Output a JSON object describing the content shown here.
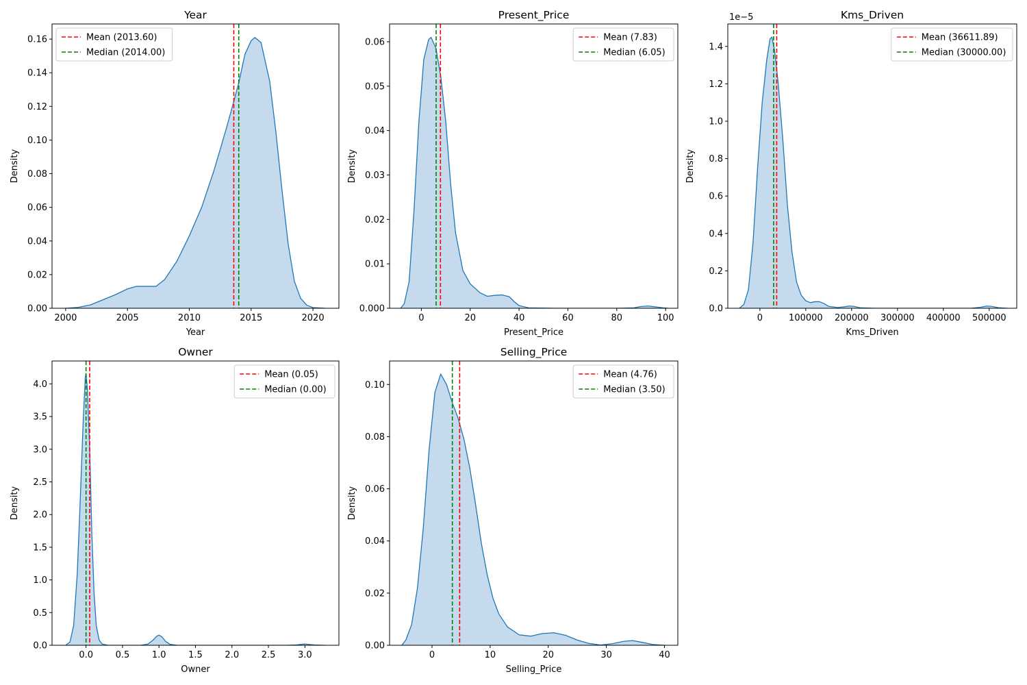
{
  "colors": {
    "fill": "#c5dbed",
    "line": "#1f77b4",
    "mean": "#ff0000",
    "median": "#008000",
    "axis": "#000000"
  },
  "chart_data": [
    {
      "type": "area",
      "title": "Year",
      "xlabel": "Year",
      "ylabel": "Density",
      "xlim": [
        1998.9,
        2022.1
      ],
      "ylim": [
        0,
        0.169
      ],
      "xticks": [
        2000,
        2005,
        2010,
        2015,
        2020
      ],
      "xtick_labels": [
        "2000",
        "2005",
        "2010",
        "2015",
        "2020"
      ],
      "yticks": [
        0,
        0.02,
        0.04,
        0.06,
        0.08,
        0.1,
        0.12,
        0.14,
        0.16
      ],
      "ytick_labels": [
        "0.00",
        "0.02",
        "0.04",
        "0.06",
        "0.08",
        "0.10",
        "0.12",
        "0.14",
        "0.16"
      ],
      "y_offset_text": "",
      "legend_position": "upper left",
      "mean": 2013.6,
      "mean_label": "Mean (2013.60)",
      "median": 2014.0,
      "median_label": "Median (2014.00)",
      "curve": [
        [
          2000,
          0
        ],
        [
          2001,
          0.0005
        ],
        [
          2002,
          0.002
        ],
        [
          2003,
          0.005
        ],
        [
          2004,
          0.008
        ],
        [
          2005,
          0.0115
        ],
        [
          2005.7,
          0.013
        ],
        [
          2006.5,
          0.013
        ],
        [
          2007.3,
          0.013
        ],
        [
          2008,
          0.017
        ],
        [
          2009,
          0.028
        ],
        [
          2010,
          0.043
        ],
        [
          2011,
          0.06
        ],
        [
          2012,
          0.082
        ],
        [
          2013,
          0.107
        ],
        [
          2013.6,
          0.123
        ],
        [
          2014,
          0.134
        ],
        [
          2014.5,
          0.151
        ],
        [
          2015,
          0.159
        ],
        [
          2015.3,
          0.161
        ],
        [
          2015.8,
          0.158
        ],
        [
          2016.5,
          0.135
        ],
        [
          2017,
          0.105
        ],
        [
          2017.5,
          0.07
        ],
        [
          2018,
          0.038
        ],
        [
          2018.5,
          0.016
        ],
        [
          2019,
          0.006
        ],
        [
          2019.5,
          0.0018
        ],
        [
          2020,
          0.0004
        ],
        [
          2021,
          0
        ]
      ]
    },
    {
      "type": "area",
      "title": "Present_Price",
      "xlabel": "Present_Price",
      "ylabel": "Density",
      "xlim": [
        -13,
        105
      ],
      "ylim": [
        0,
        0.064
      ],
      "xticks": [
        0,
        20,
        40,
        60,
        80,
        100
      ],
      "xtick_labels": [
        "0",
        "20",
        "40",
        "60",
        "80",
        "100"
      ],
      "yticks": [
        0,
        0.01,
        0.02,
        0.03,
        0.04,
        0.05,
        0.06
      ],
      "ytick_labels": [
        "0.000",
        "0.01",
        "0.02",
        "0.03",
        "0.04",
        "0.05",
        "0.06"
      ],
      "y_offset_text": "",
      "legend_position": "upper right",
      "mean": 7.83,
      "mean_label": "Mean (7.83)",
      "median": 6.05,
      "median_label": "Median (6.05)",
      "curve": [
        [
          -8.5,
          0
        ],
        [
          -7,
          0.001
        ],
        [
          -5,
          0.006
        ],
        [
          -3,
          0.022
        ],
        [
          -1,
          0.042
        ],
        [
          1,
          0.056
        ],
        [
          3,
          0.0605
        ],
        [
          4,
          0.061
        ],
        [
          6,
          0.0585
        ],
        [
          8,
          0.052
        ],
        [
          10,
          0.042
        ],
        [
          12,
          0.028
        ],
        [
          14,
          0.017
        ],
        [
          17,
          0.0085
        ],
        [
          20,
          0.0055
        ],
        [
          24,
          0.0035
        ],
        [
          27,
          0.0027
        ],
        [
          30,
          0.0029
        ],
        [
          33,
          0.003
        ],
        [
          36,
          0.0026
        ],
        [
          38,
          0.0015
        ],
        [
          40,
          0.0006
        ],
        [
          44,
          0.0001
        ],
        [
          55,
          0
        ],
        [
          80,
          0
        ],
        [
          87,
          0.0001
        ],
        [
          90,
          0.0004
        ],
        [
          93,
          0.0005
        ],
        [
          96,
          0.0003
        ],
        [
          99,
          0.0001
        ],
        [
          101,
          0
        ]
      ]
    },
    {
      "type": "area",
      "title": "Kms_Driven",
      "xlabel": "Kms_Driven",
      "ylabel": "Density",
      "xlim": [
        -70000,
        560000
      ],
      "ylim": [
        0,
        1.52e-05
      ],
      "xticks": [
        0,
        100000,
        200000,
        300000,
        400000,
        500000
      ],
      "xtick_labels": [
        "0",
        "100000",
        "200000",
        "300000",
        "400000",
        "500000"
      ],
      "yticks": [
        0,
        2e-06,
        4e-06,
        6e-06,
        8e-06,
        1e-05,
        1.2e-05,
        1.4e-05
      ],
      "ytick_labels": [
        "0.0",
        "0.2",
        "0.4",
        "0.6",
        "0.8",
        "1.0",
        "1.2",
        "1.4"
      ],
      "y_offset_text": "1e−5",
      "legend_position": "upper right",
      "mean": 36611.89,
      "mean_label": "Mean (36611.89)",
      "median": 30000.0,
      "median_label": "Median (30000.00)",
      "curve": [
        [
          -45000,
          0
        ],
        [
          -35000,
          2e-07
        ],
        [
          -25000,
          1e-06
        ],
        [
          -15000,
          3.5e-06
        ],
        [
          -5000,
          7.5e-06
        ],
        [
          5000,
          1.1e-05
        ],
        [
          15000,
          1.33e-05
        ],
        [
          22000,
          1.44e-05
        ],
        [
          26000,
          1.45e-05
        ],
        [
          32000,
          1.38e-05
        ],
        [
          40000,
          1.2e-05
        ],
        [
          50000,
          9e-06
        ],
        [
          60000,
          5.5e-06
        ],
        [
          70000,
          3e-06
        ],
        [
          80000,
          1.4e-06
        ],
        [
          90000,
          7e-07
        ],
        [
          100000,
          4e-07
        ],
        [
          110000,
          3e-07
        ],
        [
          120000,
          3.5e-07
        ],
        [
          130000,
          3.5e-07
        ],
        [
          140000,
          2.5e-07
        ],
        [
          150000,
          1e-07
        ],
        [
          170000,
          4e-08
        ],
        [
          185000,
          8e-08
        ],
        [
          195000,
          1.2e-07
        ],
        [
          205000,
          1e-07
        ],
        [
          220000,
          2e-08
        ],
        [
          250000,
          0
        ],
        [
          460000,
          0
        ],
        [
          480000,
          5e-08
        ],
        [
          495000,
          1.2e-07
        ],
        [
          505000,
          1e-07
        ],
        [
          520000,
          3e-08
        ],
        [
          540000,
          0
        ]
      ]
    },
    {
      "type": "area",
      "title": "Owner",
      "xlabel": "Owner",
      "ylabel": "Density",
      "xlim": [
        -0.466,
        3.466
      ],
      "ylim": [
        0,
        4.35
      ],
      "xticks": [
        0,
        0.5,
        1,
        1.5,
        2,
        2.5,
        3
      ],
      "xtick_labels": [
        "0.0",
        "0.5",
        "1.0",
        "1.5",
        "2.0",
        "2.5",
        "3.0"
      ],
      "yticks": [
        0,
        0.5,
        1,
        1.5,
        2,
        2.5,
        3,
        3.5,
        4
      ],
      "ytick_labels": [
        "0.0",
        "0.5",
        "1.0",
        "1.5",
        "2.0",
        "2.5",
        "3.0",
        "3.5",
        "4.0"
      ],
      "y_offset_text": "",
      "legend_position": "upper right",
      "mean": 0.05,
      "mean_label": "Mean (0.05)",
      "median": 0.0,
      "median_label": "Median (0.00)",
      "curve": [
        [
          -0.28,
          0
        ],
        [
          -0.22,
          0.05
        ],
        [
          -0.17,
          0.3
        ],
        [
          -0.12,
          1.1
        ],
        [
          -0.08,
          2.2
        ],
        [
          -0.04,
          3.4
        ],
        [
          -0.01,
          4.1
        ],
        [
          0.0,
          4.16
        ],
        [
          0.02,
          3.9
        ],
        [
          0.05,
          3.0
        ],
        [
          0.08,
          1.7
        ],
        [
          0.11,
          0.8
        ],
        [
          0.14,
          0.3
        ],
        [
          0.18,
          0.08
        ],
        [
          0.22,
          0.02
        ],
        [
          0.3,
          0
        ],
        [
          0.75,
          0
        ],
        [
          0.85,
          0.02
        ],
        [
          0.92,
          0.08
        ],
        [
          0.97,
          0.14
        ],
        [
          1.0,
          0.155
        ],
        [
          1.04,
          0.13
        ],
        [
          1.09,
          0.06
        ],
        [
          1.15,
          0.015
        ],
        [
          1.25,
          0
        ],
        [
          2.75,
          0
        ],
        [
          2.88,
          0.005
        ],
        [
          2.96,
          0.015
        ],
        [
          3.0,
          0.02
        ],
        [
          3.06,
          0.013
        ],
        [
          3.15,
          0.003
        ],
        [
          3.28,
          0
        ]
      ]
    },
    {
      "type": "area",
      "title": "Selling_Price",
      "xlabel": "Selling_Price",
      "ylabel": "Density",
      "xlim": [
        -7.3,
        42.3
      ],
      "ylim": [
        0,
        0.109
      ],
      "xticks": [
        0,
        10,
        20,
        30,
        40
      ],
      "xtick_labels": [
        "0",
        "10",
        "20",
        "30",
        "40"
      ],
      "yticks": [
        0,
        0.02,
        0.04,
        0.06,
        0.08,
        0.1
      ],
      "ytick_labels": [
        "0.00",
        "0.02",
        "0.04",
        "0.06",
        "0.08",
        "0.10"
      ],
      "y_offset_text": "",
      "legend_position": "upper right",
      "mean": 4.76,
      "mean_label": "Mean (4.76)",
      "median": 3.5,
      "median_label": "Median (3.50)",
      "curve": [
        [
          -5.2,
          0
        ],
        [
          -4.5,
          0.002
        ],
        [
          -3.5,
          0.008
        ],
        [
          -2.5,
          0.022
        ],
        [
          -1.5,
          0.045
        ],
        [
          -0.5,
          0.075
        ],
        [
          0.5,
          0.097
        ],
        [
          1.5,
          0.104
        ],
        [
          2.5,
          0.1
        ],
        [
          3.5,
          0.093
        ],
        [
          4.5,
          0.087
        ],
        [
          5.5,
          0.079
        ],
        [
          6.5,
          0.068
        ],
        [
          7.5,
          0.054
        ],
        [
          8.5,
          0.039
        ],
        [
          9.5,
          0.027
        ],
        [
          10.5,
          0.018
        ],
        [
          11.5,
          0.012
        ],
        [
          13,
          0.007
        ],
        [
          15,
          0.004
        ],
        [
          17,
          0.0035
        ],
        [
          19,
          0.0045
        ],
        [
          21,
          0.0048
        ],
        [
          23,
          0.0038
        ],
        [
          25,
          0.002
        ],
        [
          27,
          0.0007
        ],
        [
          29,
          0.0001
        ],
        [
          31,
          0.0006
        ],
        [
          33,
          0.0015
        ],
        [
          34.5,
          0.0018
        ],
        [
          36,
          0.0012
        ],
        [
          38,
          0.0003
        ],
        [
          40,
          0
        ]
      ]
    }
  ]
}
